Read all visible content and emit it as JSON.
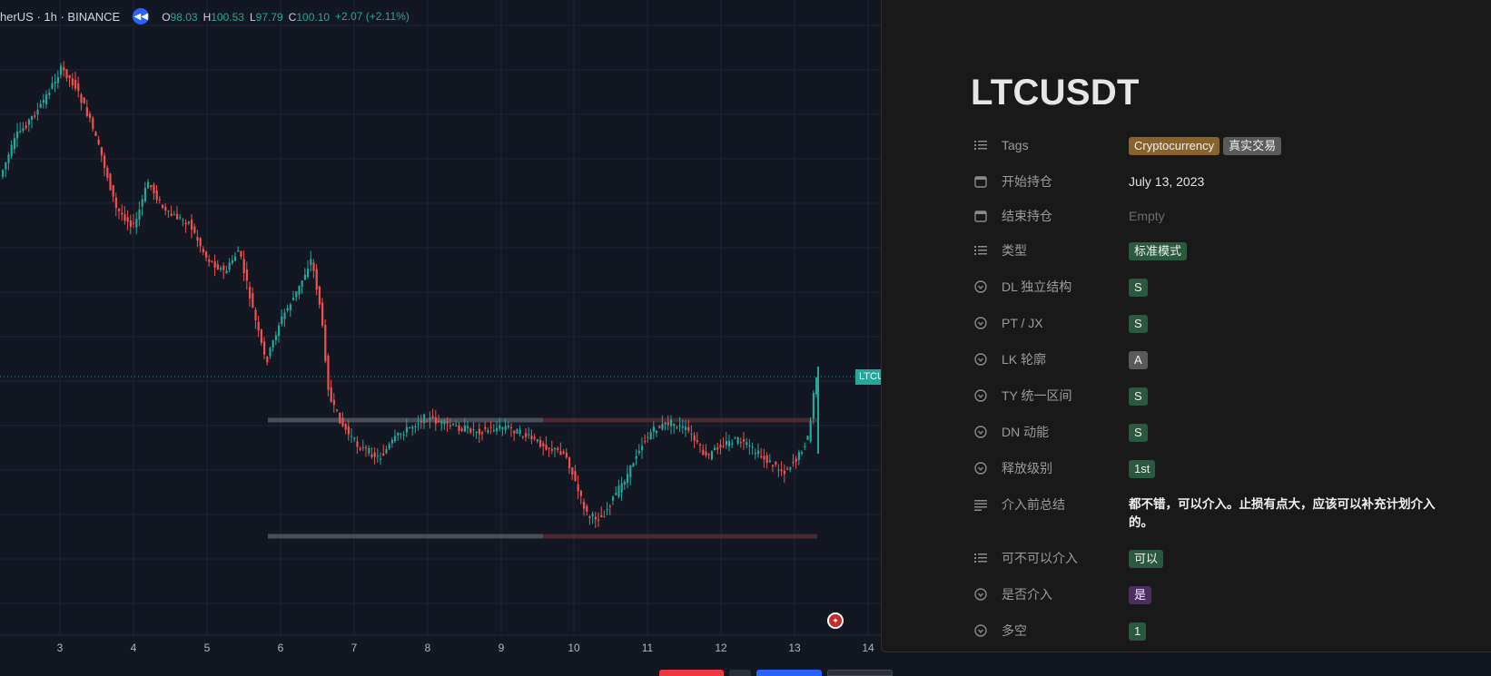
{
  "chart": {
    "symbol_text": "herUS · 1h · BINANCE",
    "ohlc": [
      {
        "k": "O",
        "v": "98.03"
      },
      {
        "k": "H",
        "v": "100.53"
      },
      {
        "k": "L",
        "v": "97.79"
      },
      {
        "k": "C",
        "v": "100.10"
      }
    ],
    "change": "+2.07 (+2.11%)",
    "price_tag": "LTCU",
    "x_ticks": [
      "3",
      "4",
      "5",
      "6",
      "7",
      "8",
      "9",
      "10",
      "11",
      "12",
      "13",
      "14"
    ],
    "colors": {
      "up": "#26a69a",
      "down": "#ef5350",
      "bg": "#131722",
      "grid": "#1f2433"
    }
  },
  "panel": {
    "title": "LTCUSDT",
    "properties": [
      {
        "icon": "list-icon",
        "key": "Tags",
        "tags": [
          {
            "text": "Cryptocurrency",
            "color": "#89632a"
          },
          {
            "text": "真实交易",
            "color": "#5a5a5a"
          }
        ]
      },
      {
        "icon": "calendar-icon",
        "key": "开始持仓",
        "text": "July 13, 2023"
      },
      {
        "icon": "calendar-icon",
        "key": "结束持仓",
        "empty": "Empty"
      },
      {
        "icon": "list-icon",
        "key": "类型",
        "tags": [
          {
            "text": "标准模式",
            "color": "#2b593f"
          }
        ]
      },
      {
        "icon": "select-icon",
        "key": "DL 独立结构",
        "tags": [
          {
            "text": "S",
            "color": "#2b593f"
          }
        ]
      },
      {
        "icon": "select-icon",
        "key": "PT / JX",
        "tags": [
          {
            "text": "S",
            "color": "#2b593f"
          }
        ]
      },
      {
        "icon": "select-icon",
        "key": "LK 轮廓",
        "tags": [
          {
            "text": "A",
            "color": "#5a5a5a"
          }
        ]
      },
      {
        "icon": "select-icon",
        "key": "TY 统一区间",
        "tags": [
          {
            "text": "S",
            "color": "#2b593f"
          }
        ]
      },
      {
        "icon": "select-icon",
        "key": "DN 动能",
        "tags": [
          {
            "text": "S",
            "color": "#2b593f"
          }
        ]
      },
      {
        "icon": "select-icon",
        "key": "释放级别",
        "tags": [
          {
            "text": "1st",
            "color": "#2b593f"
          }
        ]
      },
      {
        "icon": "text-icon",
        "key": "介入前总结",
        "summary": "都不错，可以介入。止损有点大，应该可以补充计划介入的。"
      },
      {
        "icon": "list-icon",
        "key": "可不可以介入",
        "tags": [
          {
            "text": "可以",
            "color": "#2b593f"
          }
        ]
      },
      {
        "icon": "select-icon",
        "key": "是否介入",
        "tags": [
          {
            "text": "是",
            "color": "#492f64"
          }
        ]
      },
      {
        "icon": "select-icon",
        "key": "多空",
        "tags": [
          {
            "text": "1",
            "color": "#2b593f"
          }
        ]
      }
    ]
  }
}
